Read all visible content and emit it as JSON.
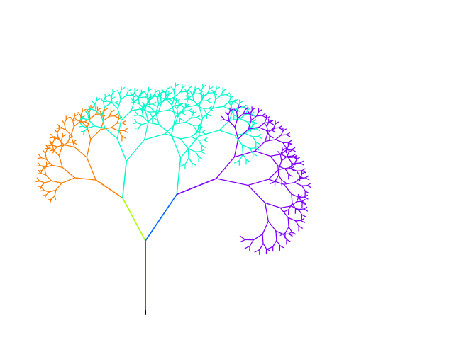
{
  "scene": {
    "description_kind": "fractal-tree",
    "background_color": "#ffffff",
    "base_color": "#000000",
    "palette": [
      "#ff0000",
      "#ff7f00",
      "#ffd700",
      "#aaff00",
      "#00ff33",
      "#00ffcc",
      "#00ccff",
      "#0066ff",
      "#0000ff",
      "#7f00ff",
      "#cc00ff",
      "#ff00aa",
      "#ff0044"
    ],
    "tree": {
      "depth": 9,
      "trunk_angle_deg": 0,
      "left_branch_angle_deg": 28,
      "right_branch_angle_deg": 34,
      "length_ratio_left": 0.66,
      "length_ratio_right": 0.76
    }
  }
}
